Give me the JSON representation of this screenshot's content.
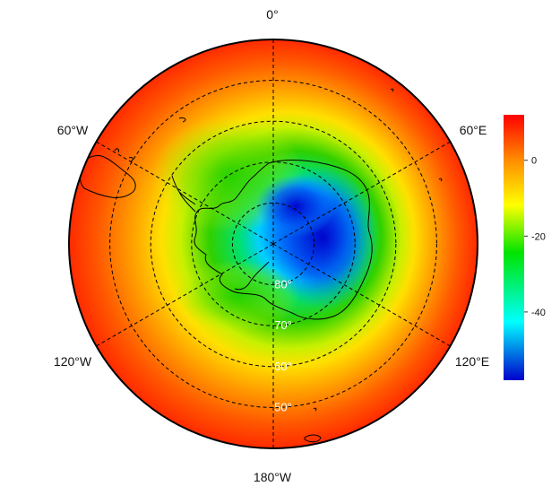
{
  "map": {
    "projection": "south-polar-stereographic",
    "longitude_labels": [
      "0°",
      "60°E",
      "120°E",
      "180°W",
      "120°W",
      "60°W"
    ],
    "longitude_lines_deg": [
      0,
      60,
      120,
      180,
      -120,
      -60
    ],
    "latitude_circles": [
      {
        "lat": -80,
        "label": "80°"
      },
      {
        "lat": -70,
        "label": "70°"
      },
      {
        "lat": -60,
        "label": "60°"
      },
      {
        "lat": -50,
        "label": "50°"
      }
    ],
    "outer_latitude": -40,
    "gridlines": "dashed",
    "coastlines": "black",
    "field_pattern": "cold minimum over the East Antarctic plateau, warming equatorward to the map edge"
  },
  "colorbar": {
    "min": -58,
    "max": 12,
    "tick_labels": [
      "0",
      "-20",
      "-40"
    ],
    "tick_values": [
      0,
      -20,
      -40
    ],
    "colors": [
      "#ff0000",
      "#ff8c00",
      "#ffff00",
      "#00e400",
      "#00ffff",
      "#0000cc"
    ]
  }
}
